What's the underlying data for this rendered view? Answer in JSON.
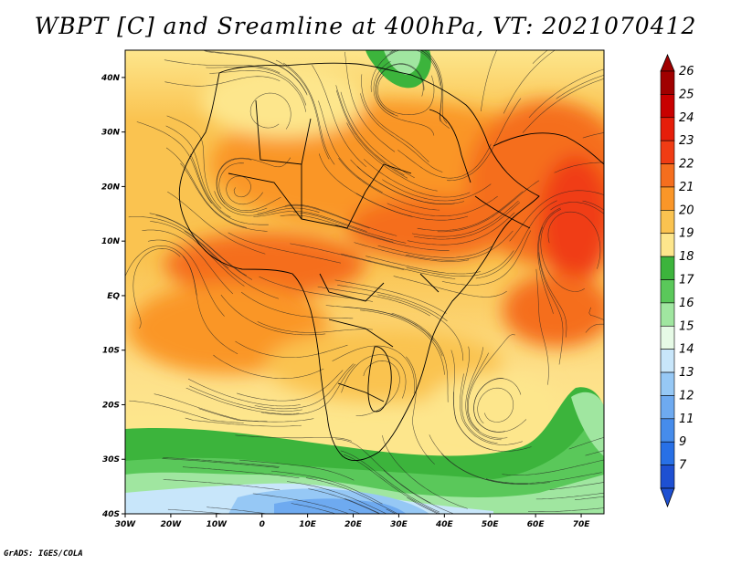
{
  "title": "WBPT [C] and Sreamline at 400hPa, VT: 2021070412",
  "credit": "GrADS: IGES/COLA",
  "map": {
    "lon_range": [
      -30,
      75
    ],
    "lat_range": [
      -40,
      45
    ],
    "lon_ticks": [
      {
        "value": -30,
        "label": "30W"
      },
      {
        "value": -20,
        "label": "20W"
      },
      {
        "value": -10,
        "label": "10W"
      },
      {
        "value": 0,
        "label": "0"
      },
      {
        "value": 10,
        "label": "10E"
      },
      {
        "value": 20,
        "label": "20E"
      },
      {
        "value": 30,
        "label": "30E"
      },
      {
        "value": 40,
        "label": "40E"
      },
      {
        "value": 50,
        "label": "50E"
      },
      {
        "value": 60,
        "label": "60E"
      },
      {
        "value": 70,
        "label": "70E"
      }
    ],
    "lat_ticks": [
      {
        "value": 40,
        "label": "40N"
      },
      {
        "value": 30,
        "label": "30N"
      },
      {
        "value": 20,
        "label": "20N"
      },
      {
        "value": 10,
        "label": "10N"
      },
      {
        "value": 0,
        "label": "EQ"
      },
      {
        "value": -10,
        "label": "10S"
      },
      {
        "value": -20,
        "label": "20S"
      },
      {
        "value": -30,
        "label": "30S"
      },
      {
        "value": -40,
        "label": "40S"
      }
    ]
  },
  "colorbar": {
    "levels": [
      {
        "label": "26",
        "color": "#a00000"
      },
      {
        "label": "25",
        "color": "#c80000"
      },
      {
        "label": "24",
        "color": "#e61e0a"
      },
      {
        "label": "23",
        "color": "#f03c14"
      },
      {
        "label": "22",
        "color": "#f56e1e"
      },
      {
        "label": "21",
        "color": "#fa9628"
      },
      {
        "label": "20",
        "color": "#fac350"
      },
      {
        "label": "19",
        "color": "#fde68c"
      },
      {
        "label": "18",
        "color": "#3cb43c"
      },
      {
        "label": "17",
        "color": "#5ac85a"
      },
      {
        "label": "16",
        "color": "#a0e6a0"
      },
      {
        "label": "15",
        "color": "#e6fae6"
      },
      {
        "label": "14",
        "color": "#c8e6fa"
      },
      {
        "label": "13",
        "color": "#96c8f5"
      },
      {
        "label": "12",
        "color": "#6eaaf0"
      },
      {
        "label": "11",
        "color": "#468ceb"
      },
      {
        "label": "9",
        "color": "#2870e6"
      },
      {
        "label": "7",
        "color": "#1e50d2"
      }
    ],
    "over_color": "#a00000",
    "under_color": "#1e50d2"
  }
}
